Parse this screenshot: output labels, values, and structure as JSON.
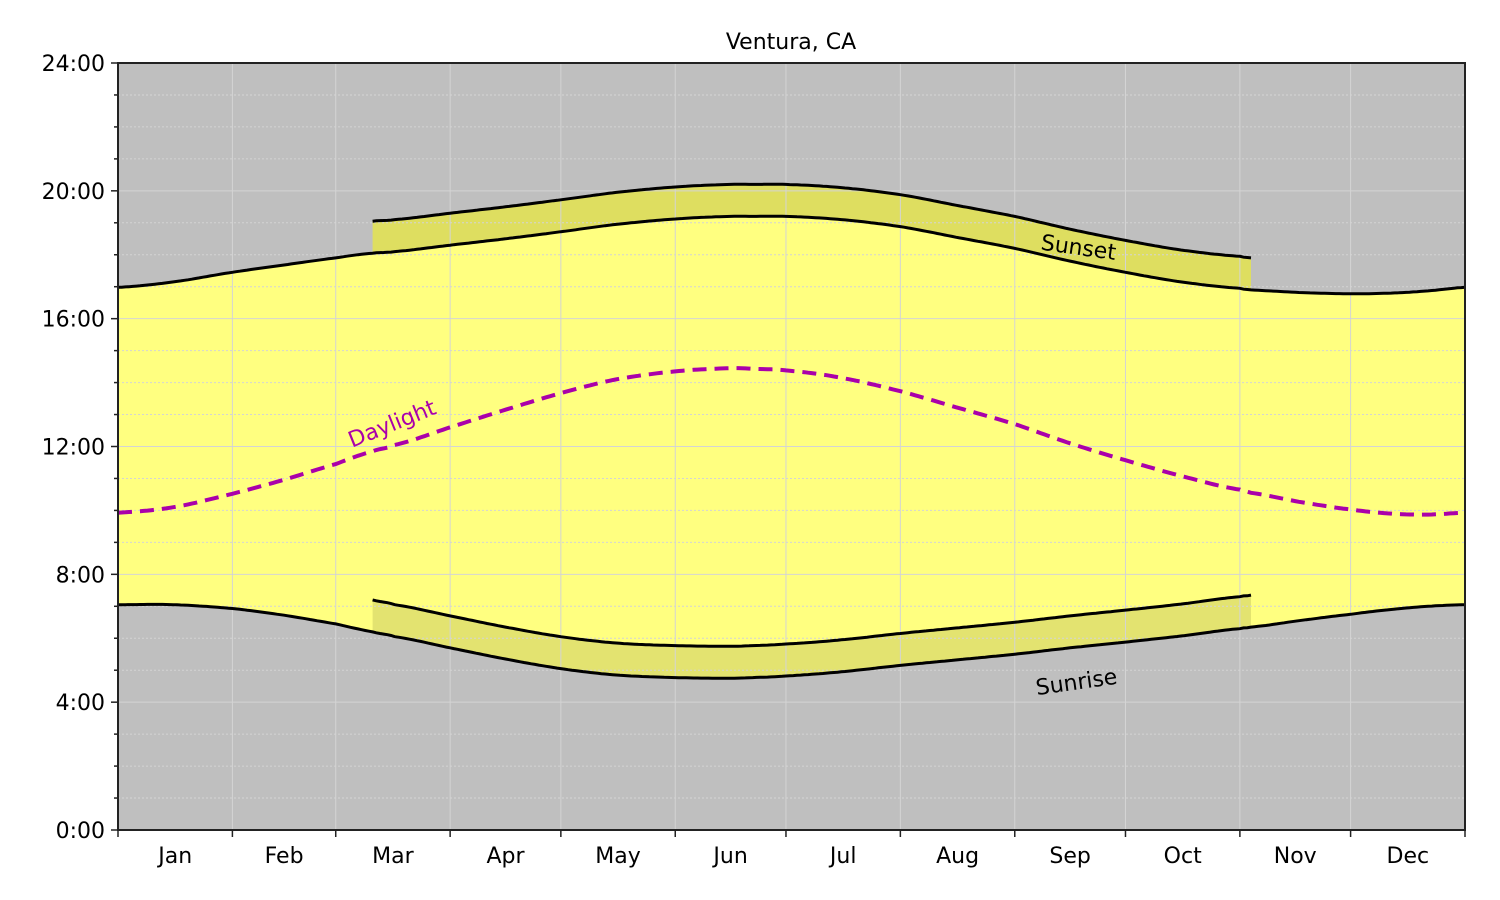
{
  "chart_data": {
    "type": "area",
    "title": "Ventura, CA",
    "xlabel": "",
    "ylabel": "",
    "ylim": [
      0,
      24
    ],
    "xlim": [
      0,
      365
    ],
    "grid": true,
    "legend": null,
    "y_ticks": [
      "0:00",
      "4:00",
      "8:00",
      "12:00",
      "16:00",
      "20:00",
      "24:00"
    ],
    "y_tick_values": [
      0,
      4,
      8,
      12,
      16,
      20,
      24
    ],
    "x_tick_labels": [
      "Jan",
      "Feb",
      "Mar",
      "Apr",
      "May",
      "Jun",
      "Jul",
      "Aug",
      "Sep",
      "Oct",
      "Nov",
      "Dec"
    ],
    "month_start_days": [
      0,
      31,
      59,
      90,
      120,
      151,
      181,
      212,
      243,
      273,
      304,
      334,
      365
    ],
    "dst": {
      "start_day": 69,
      "end_day": 307,
      "offset_hours": 1
    },
    "x_days": [
      0,
      15,
      31,
      45,
      59,
      69,
      75,
      90,
      105,
      120,
      135,
      151,
      166,
      172,
      181,
      196,
      212,
      227,
      243,
      258,
      273,
      288,
      304,
      307,
      320,
      334,
      345,
      355,
      365
    ],
    "series": [
      {
        "name": "Sunrise (standard time)",
        "values": [
          7.05,
          7.05,
          6.93,
          6.72,
          6.45,
          6.2,
          6.05,
          5.7,
          5.35,
          5.05,
          4.85,
          4.77,
          4.75,
          4.77,
          4.82,
          4.95,
          5.15,
          5.32,
          5.5,
          5.7,
          5.88,
          6.07,
          6.3,
          6.35,
          6.55,
          6.75,
          6.9,
          7.0,
          7.05
        ]
      },
      {
        "name": "Sunset (standard time)",
        "values": [
          16.98,
          17.15,
          17.45,
          17.68,
          17.9,
          18.05,
          18.1,
          18.3,
          18.5,
          18.72,
          18.95,
          19.12,
          19.2,
          19.2,
          19.2,
          19.1,
          18.88,
          18.55,
          18.2,
          17.8,
          17.45,
          17.15,
          16.95,
          16.9,
          16.82,
          16.78,
          16.8,
          16.87,
          16.98
        ]
      },
      {
        "name": "Daylight (hours)",
        "values": [
          9.93,
          10.1,
          10.52,
          10.96,
          11.45,
          11.85,
          12.05,
          12.6,
          13.15,
          13.67,
          14.1,
          14.35,
          14.45,
          14.43,
          14.38,
          14.15,
          13.73,
          13.23,
          12.7,
          12.1,
          11.57,
          11.08,
          10.65,
          10.55,
          10.27,
          10.03,
          9.9,
          9.87,
          9.93
        ]
      }
    ],
    "annotations": [
      {
        "text": "Sunset",
        "day": 260,
        "hours": 18.0,
        "rotation": 8
      },
      {
        "text": "Sunrise",
        "day": 260,
        "hours": 4.4,
        "rotation": -8
      },
      {
        "text": "Daylight",
        "day": 75,
        "hours": 12.5,
        "rotation": -22
      }
    ],
    "colors": {
      "night": "#bfbfbf",
      "day": "#ffff80",
      "dst_band": "#dede60",
      "daylight_line": "#aa00aa",
      "sun_lines": "#000000",
      "grid": "#d4d4d4"
    }
  }
}
